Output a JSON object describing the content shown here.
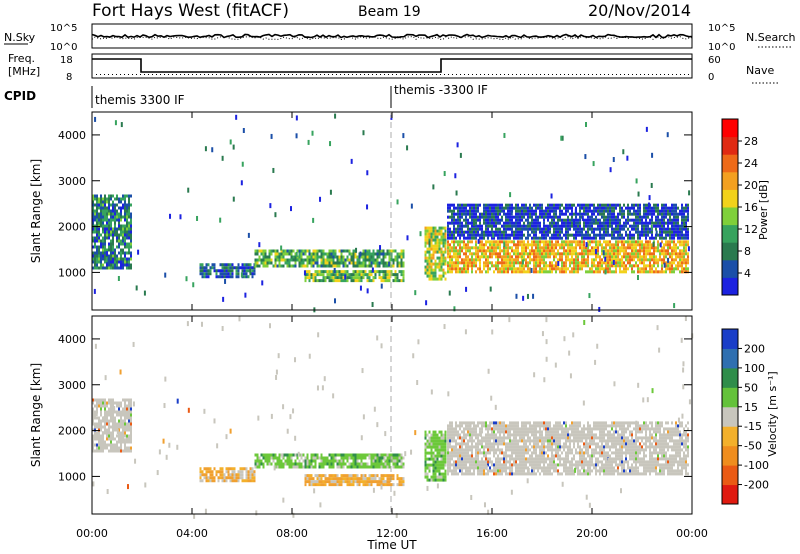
{
  "header": {
    "station": "Fort Hays West (fitACF)",
    "beam": "Beam 19",
    "date": "20/Nov/2014"
  },
  "noise_panel": {
    "left_label": "N.Sky",
    "right_label": "N.Search",
    "left_ticks": [
      "10^5",
      "10^0"
    ],
    "right_ticks": [
      "10^5",
      "10^0"
    ]
  },
  "freq_panel": {
    "left_label_1": "Freq.",
    "left_label_2": "[MHz]",
    "right_label": "Nave",
    "left_ticks": [
      "18",
      "8"
    ],
    "right_ticks": [
      "60",
      "0"
    ]
  },
  "cpid": {
    "label": "CPID",
    "segments": [
      {
        "start_hour": 0,
        "text": "themis 3300 IF"
      },
      {
        "start_hour": 12,
        "text": "themis -3300 IF"
      }
    ]
  },
  "colors": {
    "power": [
      "#1c22e0",
      "#1b4fa8",
      "#2a7a4f",
      "#37a35e",
      "#7fcf3a",
      "#f2d21b",
      "#f3a020",
      "#ee6a18",
      "#e02a12",
      "#ff0000"
    ],
    "velocity_pos": [
      "#1a3ec8",
      "#2f6fb0",
      "#2f8d4a",
      "#64c23a"
    ],
    "velocity_neutral": "#c8c6bd",
    "velocity_neg": [
      "#f3b02b",
      "#ef8d1e",
      "#ea5a14",
      "#e01a10"
    ],
    "velocity_green": "#6cc83a",
    "velocity_orange": "#f0a030"
  },
  "chart_data": [
    {
      "type": "heatmap",
      "name": "power",
      "ylabel": "Slant Range [km]",
      "colorbar_label": "Power [dB]",
      "colorbar_ticks": [
        "4",
        "8",
        "12",
        "16",
        "20",
        "24",
        "28"
      ],
      "ylim": [
        180,
        4500
      ],
      "yticks": [
        "1000",
        "2000",
        "3000",
        "4000"
      ],
      "regions": [
        {
          "x": [
            0.0,
            1.6
          ],
          "y": [
            1050,
            2700
          ],
          "level": 0.3
        },
        {
          "x": [
            4.3,
            6.5
          ],
          "y": [
            880,
            1200
          ],
          "level": 0.25
        },
        {
          "x": [
            6.5,
            12.5
          ],
          "y": [
            1100,
            1500
          ],
          "level": 0.45
        },
        {
          "x": [
            8.5,
            12.5
          ],
          "y": [
            780,
            1050
          ],
          "level": 0.5
        },
        {
          "x": [
            13.3,
            14.2
          ],
          "y": [
            800,
            2000
          ],
          "level": 0.6
        },
        {
          "x": [
            14.2,
            23.9
          ],
          "y": [
            1000,
            1700
          ],
          "level": 0.75
        },
        {
          "x": [
            14.2,
            23.9
          ],
          "y": [
            1700,
            2500
          ],
          "level": 0.15
        }
      ]
    },
    {
      "type": "heatmap",
      "name": "velocity",
      "ylabel": "Slant Range [km]",
      "xlabel": "Time UT",
      "colorbar_label": "Velocity [m s⁻¹]",
      "colorbar_ticks": [
        "-200",
        "-100",
        "-50",
        "-15",
        "15",
        "50",
        "100",
        "200"
      ],
      "ylim": [
        180,
        4500
      ],
      "yticks": [
        "1000",
        "2000",
        "3000",
        "4000"
      ],
      "xlim": [
        0,
        24
      ],
      "xticks": [
        "00:00",
        "04:00",
        "08:00",
        "12:00",
        "16:00",
        "20:00",
        "00:00"
      ],
      "regions": [
        {
          "x": [
            0.0,
            1.6
          ],
          "y": [
            1500,
            2700
          ],
          "tone": "neutral"
        },
        {
          "x": [
            4.3,
            6.5
          ],
          "y": [
            880,
            1200
          ],
          "tone": "orange"
        },
        {
          "x": [
            6.5,
            12.5
          ],
          "y": [
            1150,
            1500
          ],
          "tone": "green"
        },
        {
          "x": [
            8.5,
            12.5
          ],
          "y": [
            780,
            1050
          ],
          "tone": "orange"
        },
        {
          "x": [
            13.3,
            14.2
          ],
          "y": [
            900,
            2000
          ],
          "tone": "green"
        },
        {
          "x": [
            14.2,
            23.9
          ],
          "y": [
            1000,
            2200
          ],
          "tone": "neutral"
        }
      ]
    }
  ]
}
